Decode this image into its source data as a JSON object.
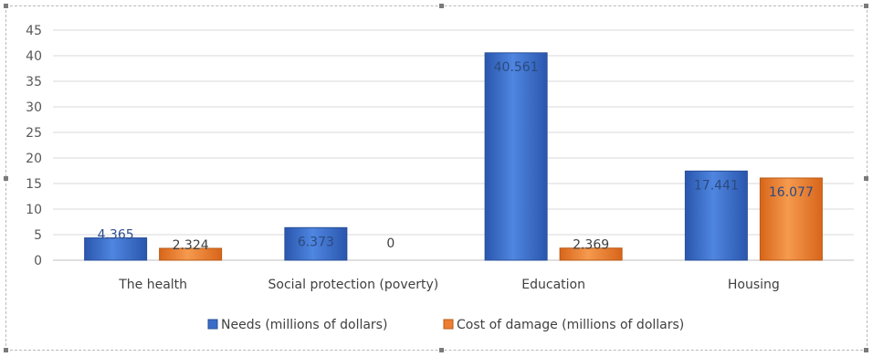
{
  "chart_data": {
    "type": "bar",
    "categories": [
      "The health",
      "Social protection (poverty)",
      "Education",
      "Housing"
    ],
    "series": [
      {
        "name": "Needs (millions of dollars)",
        "values": [
          4.365,
          6.373,
          40.561,
          17.441
        ],
        "labels": [
          "4.365",
          "6.373",
          "40.561",
          "17.441"
        ]
      },
      {
        "name": "Cost of damage (millions of dollars)",
        "values": [
          2.324,
          0,
          2.369,
          16.077
        ],
        "labels": [
          "2.324",
          "0",
          "2.369",
          "16.077"
        ]
      }
    ],
    "yticks": [
      "0",
      "5",
      "10",
      "15",
      "20",
      "25",
      "30",
      "35",
      "40",
      "45"
    ],
    "ylim": [
      0,
      45
    ],
    "grid": true,
    "legend": "bottom",
    "title": "",
    "xlabel": "",
    "ylabel": "",
    "colors": {
      "needs": "#3a6cc8",
      "damage": "#ed7d31",
      "grid": "#d9d9d9"
    }
  }
}
